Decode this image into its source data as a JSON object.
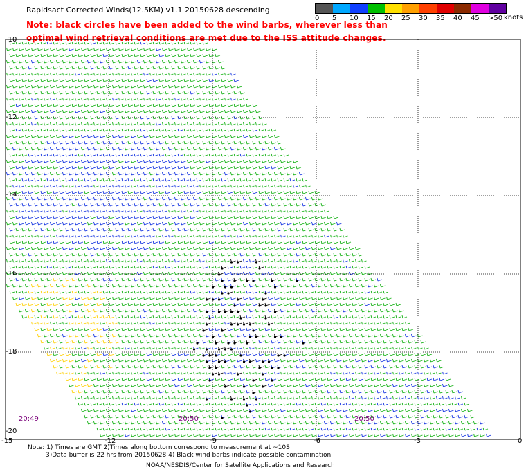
{
  "title": "Rapidsact Corrected Winds(12.5KM) v1.1 20150628 descending",
  "note_line1": "Note: black circles have been added to the wind barbs, wherever less than",
  "note_line2": "optimal wind retrieval conditions are met due to the ISS attitude changes.",
  "legend": {
    "labels": [
      "0",
      "5",
      "10",
      "15",
      "20",
      "25",
      "30",
      "35",
      "40",
      "45",
      ">50"
    ],
    "unit": "knots",
    "colors": [
      "#555555",
      "#00a8ff",
      "#1040ff",
      "#00c000",
      "#ffe000",
      "#ffa000",
      "#ff4000",
      "#e00000",
      "#8b2a00",
      "#e000e0",
      "#6000a0"
    ]
  },
  "axes": {
    "y_labels": [
      "-10",
      "-12",
      "-14",
      "-16",
      "-18",
      "-20"
    ],
    "x_labels": [
      "-15",
      "-12",
      "-9",
      "-6",
      "-3",
      "0"
    ]
  },
  "times": [
    "20:49",
    "20:50",
    "20:50"
  ],
  "footer": {
    "line1": "Note: 1) Times are GMT 2)Times along bottom correspond to measurement at ~10S",
    "line2": "3)Data buffer is 22 hrs from 20150628 4) Black wind barbs indicate possible contamination",
    "line3": "NOAA/NESDIS/Center for Satellite Applications and Research"
  }
}
